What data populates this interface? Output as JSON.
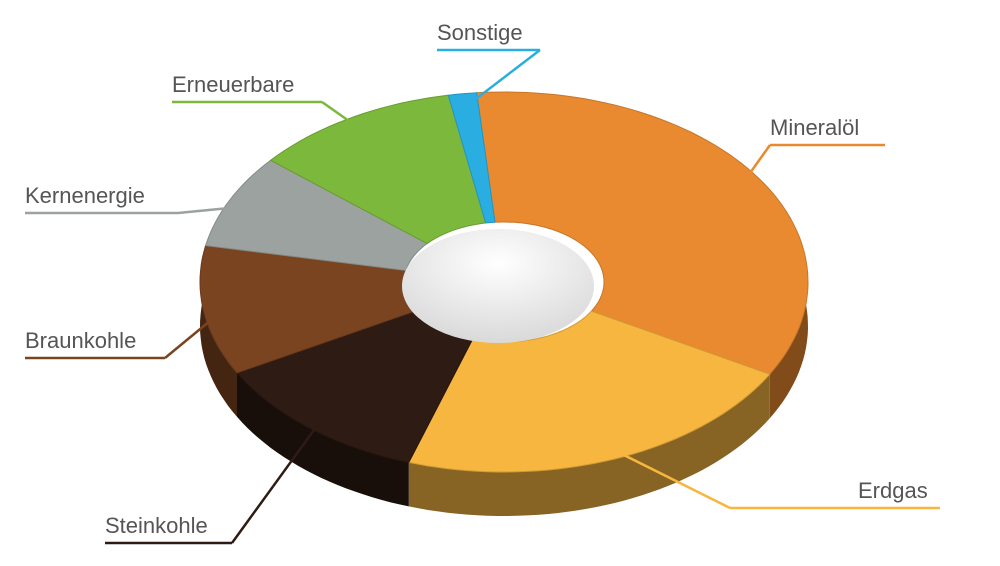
{
  "chart_data": {
    "type": "pie",
    "categories": [
      "Mineralöl",
      "Erdgas",
      "Steinkohle",
      "Braunkohle",
      "Kernenergie",
      "Erneuerbare",
      "Sonstige"
    ],
    "values": [
      34.5,
      22,
      12,
      11,
      8,
      11,
      1.5
    ],
    "colors": [
      "#ea8a30",
      "#f6b63f",
      "#2e1b13",
      "#7a4421",
      "#9ca29f",
      "#7cb83b",
      "#2aaee2"
    ]
  }
}
